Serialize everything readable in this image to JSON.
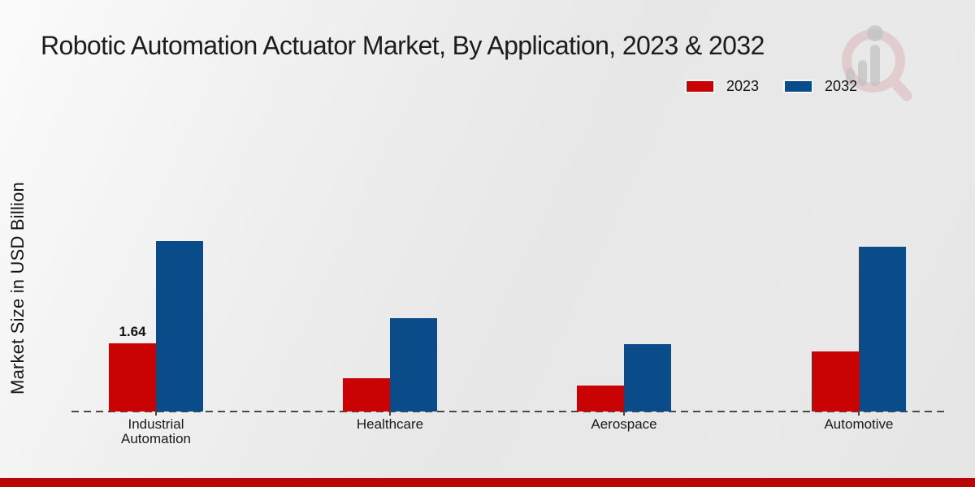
{
  "page": {
    "title": "Robotic Automation Actuator Market, By Application, 2023 & 2032"
  },
  "legend": {
    "items": [
      {
        "label": "2023",
        "color": "#c90303"
      },
      {
        "label": "2032",
        "color": "#0a4b8a"
      }
    ]
  },
  "chart_data": {
    "type": "bar",
    "title": "Robotic Automation Actuator Market, By Application, 2023 & 2032",
    "xlabel": "",
    "ylabel": "Market Size in USD Billion",
    "categories": [
      "Industrial Automation",
      "Healthcare",
      "Aerospace",
      "Automotive"
    ],
    "series": [
      {
        "name": "2023",
        "color": "#c90303",
        "values": [
          1.64,
          0.8,
          0.63,
          1.45
        ]
      },
      {
        "name": "2032",
        "color": "#0a4b8a",
        "values": [
          4.1,
          2.24,
          1.63,
          3.97
        ]
      }
    ],
    "data_labels": [
      {
        "category": "Industrial Automation",
        "series": "2023",
        "text": "1.64"
      }
    ],
    "ylim": [
      0,
      5
    ],
    "grid": false,
    "y_axis_ticks_visible": false,
    "baseline_style": "dashed",
    "legend_position": "top-right"
  },
  "watermark": {
    "name": "market-research-magnifier-logo"
  },
  "footer": {
    "accent_color": "#b90606"
  }
}
